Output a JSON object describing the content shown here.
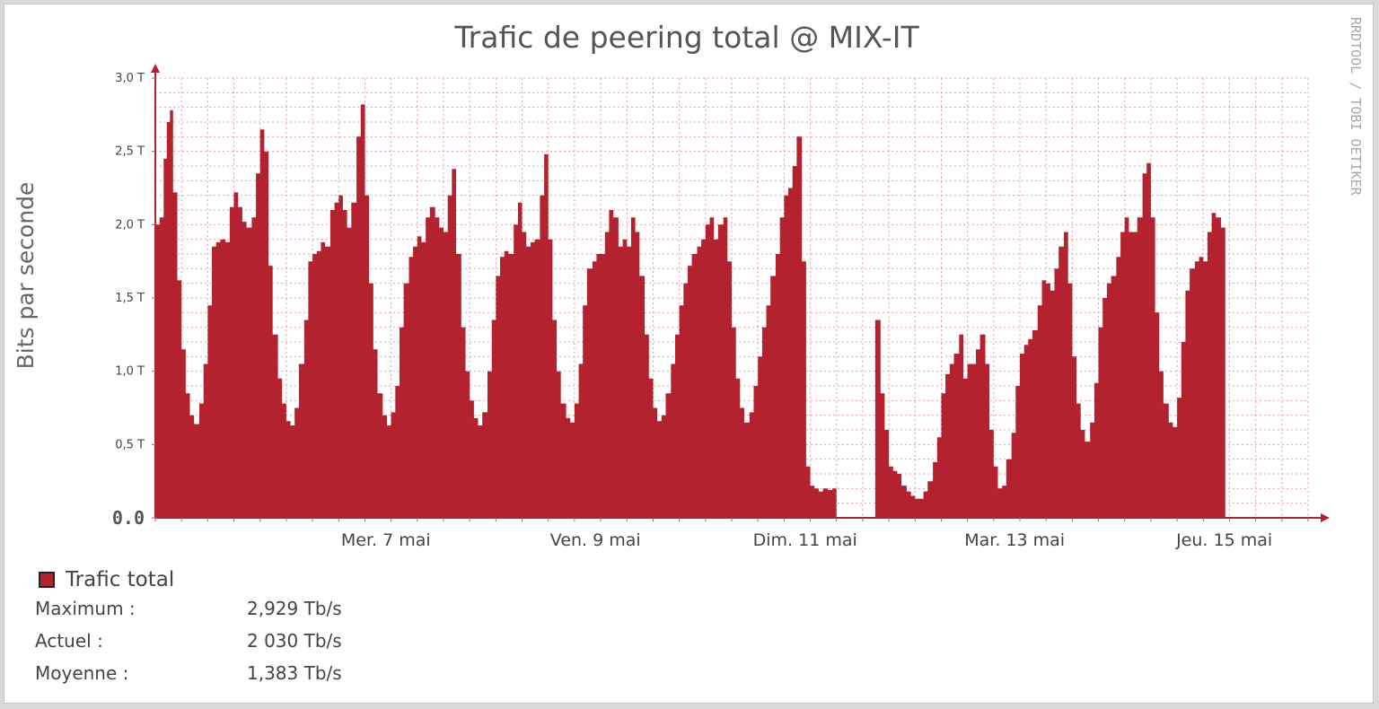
{
  "chart_data": {
    "type": "area",
    "title": "Trafic de peering total @ MIX-IT",
    "ylabel": "Bits par seconde",
    "xlabel": "",
    "ylim": [
      0,
      3.0
    ],
    "yunit": "Tb/s",
    "grid": true,
    "y_ticks": [
      {
        "value": 0,
        "label": "0.0"
      },
      {
        "value": 0.5,
        "label": "0,5 T"
      },
      {
        "value": 1.0,
        "label": "1,0 T"
      },
      {
        "value": 1.5,
        "label": "1,5 T"
      },
      {
        "value": 2.0,
        "label": "2,0 T"
      },
      {
        "value": 2.5,
        "label": "2,5 T"
      },
      {
        "value": 3.0,
        "label": "3,0 T"
      }
    ],
    "x_range_days": [
      5.0,
      16.0
    ],
    "x_ticks": [
      {
        "day": 7,
        "label": "Mer. 7 mai"
      },
      {
        "day": 9,
        "label": "Ven. 9 mai"
      },
      {
        "day": 11,
        "label": "Dim. 11 mai"
      },
      {
        "day": 13,
        "label": "Mar. 13 mai"
      },
      {
        "day": 15,
        "label": "Jeu. 15 mai"
      }
    ],
    "series": [
      {
        "name": "Trafic total",
        "color": "#b5222f",
        "points": [
          [
            5.0,
            2.0
          ],
          [
            5.04,
            2.05
          ],
          [
            5.08,
            2.45
          ],
          [
            5.11,
            2.7
          ],
          [
            5.14,
            2.78
          ],
          [
            5.17,
            2.22
          ],
          [
            5.21,
            1.62
          ],
          [
            5.25,
            1.15
          ],
          [
            5.29,
            0.85
          ],
          [
            5.33,
            0.7
          ],
          [
            5.37,
            0.64
          ],
          [
            5.42,
            0.78
          ],
          [
            5.46,
            1.05
          ],
          [
            5.5,
            1.45
          ],
          [
            5.54,
            1.85
          ],
          [
            5.58,
            1.88
          ],
          [
            5.62,
            1.9
          ],
          [
            5.67,
            1.88
          ],
          [
            5.71,
            2.12
          ],
          [
            5.75,
            2.22
          ],
          [
            5.79,
            2.12
          ],
          [
            5.83,
            2.02
          ],
          [
            5.87,
            1.98
          ],
          [
            5.92,
            2.05
          ],
          [
            5.96,
            2.35
          ],
          [
            6.0,
            2.65
          ],
          [
            6.04,
            2.5
          ],
          [
            6.08,
            1.72
          ],
          [
            6.12,
            1.25
          ],
          [
            6.17,
            0.95
          ],
          [
            6.21,
            0.78
          ],
          [
            6.25,
            0.66
          ],
          [
            6.29,
            0.63
          ],
          [
            6.33,
            0.75
          ],
          [
            6.37,
            1.05
          ],
          [
            6.42,
            1.35
          ],
          [
            6.46,
            1.75
          ],
          [
            6.5,
            1.8
          ],
          [
            6.54,
            1.82
          ],
          [
            6.58,
            1.88
          ],
          [
            6.62,
            1.85
          ],
          [
            6.67,
            2.1
          ],
          [
            6.71,
            2.15
          ],
          [
            6.75,
            2.2
          ],
          [
            6.79,
            2.1
          ],
          [
            6.83,
            1.98
          ],
          [
            6.87,
            2.15
          ],
          [
            6.92,
            2.6
          ],
          [
            6.96,
            2.82
          ],
          [
            7.0,
            2.2
          ],
          [
            7.04,
            1.6
          ],
          [
            7.08,
            1.15
          ],
          [
            7.12,
            0.85
          ],
          [
            7.17,
            0.7
          ],
          [
            7.21,
            0.63
          ],
          [
            7.25,
            0.72
          ],
          [
            7.29,
            0.9
          ],
          [
            7.33,
            1.3
          ],
          [
            7.37,
            1.6
          ],
          [
            7.42,
            1.78
          ],
          [
            7.46,
            1.85
          ],
          [
            7.5,
            1.92
          ],
          [
            7.54,
            1.88
          ],
          [
            7.58,
            2.05
          ],
          [
            7.62,
            2.12
          ],
          [
            7.67,
            2.05
          ],
          [
            7.71,
            1.98
          ],
          [
            7.75,
            1.95
          ],
          [
            7.79,
            2.2
          ],
          [
            7.83,
            2.38
          ],
          [
            7.87,
            1.8
          ],
          [
            7.92,
            1.3
          ],
          [
            7.96,
            1.0
          ],
          [
            8.0,
            0.8
          ],
          [
            8.04,
            0.68
          ],
          [
            8.08,
            0.63
          ],
          [
            8.12,
            0.72
          ],
          [
            8.17,
            1.0
          ],
          [
            8.21,
            1.35
          ],
          [
            8.25,
            1.65
          ],
          [
            8.29,
            1.78
          ],
          [
            8.33,
            1.82
          ],
          [
            8.37,
            1.8
          ],
          [
            8.42,
            2.0
          ],
          [
            8.46,
            2.15
          ],
          [
            8.5,
            1.95
          ],
          [
            8.54,
            1.85
          ],
          [
            8.58,
            1.88
          ],
          [
            8.62,
            1.9
          ],
          [
            8.67,
            2.2
          ],
          [
            8.71,
            2.48
          ],
          [
            8.75,
            1.9
          ],
          [
            8.79,
            1.35
          ],
          [
            8.83,
            1.0
          ],
          [
            8.87,
            0.78
          ],
          [
            8.92,
            0.68
          ],
          [
            8.96,
            0.65
          ],
          [
            9.0,
            0.78
          ],
          [
            9.04,
            1.05
          ],
          [
            9.08,
            1.45
          ],
          [
            9.12,
            1.7
          ],
          [
            9.17,
            1.75
          ],
          [
            9.21,
            1.8
          ],
          [
            9.25,
            1.8
          ],
          [
            9.29,
            1.95
          ],
          [
            9.33,
            2.1
          ],
          [
            9.37,
            2.05
          ],
          [
            9.42,
            1.85
          ],
          [
            9.46,
            1.9
          ],
          [
            9.5,
            1.85
          ],
          [
            9.54,
            2.05
          ],
          [
            9.58,
            1.95
          ],
          [
            9.62,
            1.65
          ],
          [
            9.67,
            1.25
          ],
          [
            9.71,
            0.95
          ],
          [
            9.75,
            0.75
          ],
          [
            9.79,
            0.66
          ],
          [
            9.83,
            0.7
          ],
          [
            9.87,
            0.85
          ],
          [
            9.92,
            1.05
          ],
          [
            9.96,
            1.25
          ],
          [
            10.0,
            1.45
          ],
          [
            10.04,
            1.6
          ],
          [
            10.08,
            1.72
          ],
          [
            10.12,
            1.8
          ],
          [
            10.17,
            1.85
          ],
          [
            10.21,
            1.9
          ],
          [
            10.25,
            2.0
          ],
          [
            10.29,
            2.05
          ],
          [
            10.33,
            1.9
          ],
          [
            10.37,
            2.0
          ],
          [
            10.42,
            2.05
          ],
          [
            10.46,
            1.75
          ],
          [
            10.5,
            1.3
          ],
          [
            10.54,
            0.95
          ],
          [
            10.58,
            0.75
          ],
          [
            10.62,
            0.65
          ],
          [
            10.67,
            0.72
          ],
          [
            10.71,
            0.9
          ],
          [
            10.75,
            1.1
          ],
          [
            10.79,
            1.3
          ],
          [
            10.83,
            1.45
          ],
          [
            10.87,
            1.65
          ],
          [
            10.92,
            1.8
          ],
          [
            10.96,
            2.05
          ],
          [
            11.0,
            2.2
          ],
          [
            11.04,
            2.25
          ],
          [
            11.08,
            2.4
          ],
          [
            11.12,
            2.6
          ],
          [
            11.17,
            1.75
          ],
          [
            11.21,
            0.35
          ],
          [
            11.25,
            0.22
          ],
          [
            11.29,
            0.2
          ],
          [
            11.33,
            0.18
          ],
          [
            11.37,
            0.2
          ],
          [
            11.42,
            0.19
          ],
          [
            11.46,
            0.2
          ],
          [
            11.5,
            0.0
          ],
          [
            11.83,
            0.0
          ],
          [
            11.87,
            1.35
          ],
          [
            11.92,
            0.85
          ],
          [
            11.96,
            0.6
          ],
          [
            12.0,
            0.35
          ],
          [
            12.04,
            0.32
          ],
          [
            12.08,
            0.3
          ],
          [
            12.12,
            0.22
          ],
          [
            12.17,
            0.18
          ],
          [
            12.21,
            0.15
          ],
          [
            12.25,
            0.13
          ],
          [
            12.29,
            0.13
          ],
          [
            12.33,
            0.18
          ],
          [
            12.37,
            0.25
          ],
          [
            12.42,
            0.38
          ],
          [
            12.46,
            0.55
          ],
          [
            12.5,
            0.85
          ],
          [
            12.54,
            0.98
          ],
          [
            12.58,
            1.05
          ],
          [
            12.62,
            1.12
          ],
          [
            12.67,
            1.25
          ],
          [
            12.71,
            0.95
          ],
          [
            12.75,
            1.05
          ],
          [
            12.79,
            1.05
          ],
          [
            12.83,
            1.15
          ],
          [
            12.87,
            1.25
          ],
          [
            12.92,
            1.05
          ],
          [
            12.96,
            0.6
          ],
          [
            13.0,
            0.35
          ],
          [
            13.04,
            0.2
          ],
          [
            13.08,
            0.22
          ],
          [
            13.12,
            0.4
          ],
          [
            13.17,
            0.58
          ],
          [
            13.21,
            0.9
          ],
          [
            13.25,
            1.12
          ],
          [
            13.29,
            1.18
          ],
          [
            13.33,
            1.22
          ],
          [
            13.37,
            1.28
          ],
          [
            13.42,
            1.45
          ],
          [
            13.46,
            1.62
          ],
          [
            13.5,
            1.6
          ],
          [
            13.54,
            1.55
          ],
          [
            13.58,
            1.7
          ],
          [
            13.62,
            1.85
          ],
          [
            13.67,
            1.95
          ],
          [
            13.71,
            1.6
          ],
          [
            13.75,
            1.1
          ],
          [
            13.79,
            0.78
          ],
          [
            13.83,
            0.6
          ],
          [
            13.87,
            0.52
          ],
          [
            13.92,
            0.65
          ],
          [
            13.96,
            0.92
          ],
          [
            14.0,
            1.3
          ],
          [
            14.04,
            1.5
          ],
          [
            14.08,
            1.6
          ],
          [
            14.12,
            1.65
          ],
          [
            14.17,
            1.78
          ],
          [
            14.21,
            1.95
          ],
          [
            14.25,
            2.05
          ],
          [
            14.29,
            1.95
          ],
          [
            14.33,
            1.95
          ],
          [
            14.37,
            2.05
          ],
          [
            14.42,
            2.35
          ],
          [
            14.46,
            2.42
          ],
          [
            14.5,
            2.05
          ],
          [
            14.54,
            1.4
          ],
          [
            14.58,
            1.0
          ],
          [
            14.62,
            0.78
          ],
          [
            14.67,
            0.65
          ],
          [
            14.71,
            0.62
          ],
          [
            14.75,
            0.82
          ],
          [
            14.79,
            1.2
          ],
          [
            14.83,
            1.55
          ],
          [
            14.87,
            1.7
          ],
          [
            14.92,
            1.75
          ],
          [
            14.96,
            1.78
          ],
          [
            15.0,
            1.75
          ],
          [
            15.04,
            1.95
          ],
          [
            15.08,
            2.08
          ],
          [
            15.12,
            2.05
          ],
          [
            15.17,
            1.98
          ]
        ]
      }
    ]
  },
  "legend": {
    "items": [
      {
        "name": "Trafic total",
        "color": "#b5222f"
      }
    ],
    "stats": [
      {
        "label": "Maximum :",
        "value": "2,929 Tb/s"
      },
      {
        "label": "Actuel :",
        "value": "2 030 Tb/s"
      },
      {
        "label": "Moyenne :",
        "value": "1,383 Tb/s"
      }
    ]
  },
  "watermark": "RRDTOOL / TOBI OETIKER",
  "colors": {
    "area": "#b5222f",
    "grid": "#e6a0a0",
    "axis": "#b5222f"
  }
}
